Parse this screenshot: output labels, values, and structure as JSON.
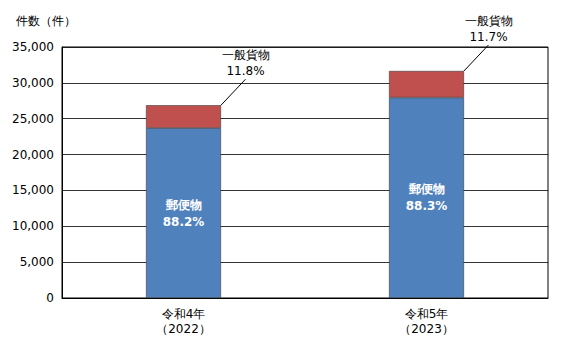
{
  "chart_data": {
    "type": "bar",
    "stacked": true,
    "y_label": "件数（件）",
    "categories": [
      "令和4年\n（2022）",
      "令和5年\n（2023）"
    ],
    "series": [
      {
        "name": "郵便物",
        "color": "#4f81bd",
        "values": [
          23700,
          27950
        ],
        "share_labels": [
          "88.2%",
          "88.3%"
        ]
      },
      {
        "name": "一般貨物",
        "color": "#c0504d",
        "values": [
          3180,
          3710
        ],
        "share_labels": [
          "11.8%",
          "11.7%"
        ]
      }
    ],
    "ylim": [
      0,
      35000
    ],
    "yticks": [
      0,
      {
        "value": 5000,
        "label": "5,000"
      },
      {
        "value": 10000,
        "label": "10,000"
      },
      {
        "value": 15000,
        "label": "15,000"
      },
      {
        "value": 20000,
        "label": "20,000"
      },
      {
        "value": 25000,
        "label": "25,000"
      },
      {
        "value": 30000,
        "label": "30,000"
      },
      {
        "value": 35000,
        "label": "35,000"
      }
    ],
    "grid": true
  }
}
